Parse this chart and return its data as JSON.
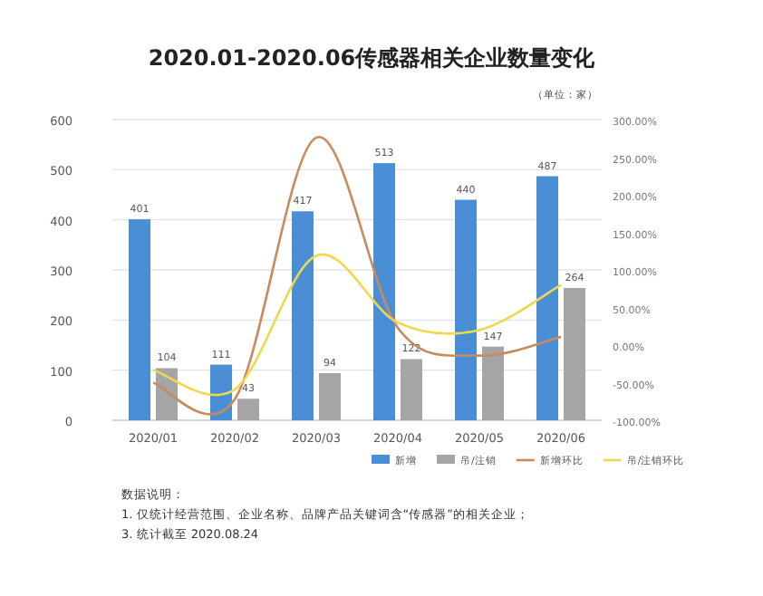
{
  "chart_data": {
    "type": "bar",
    "title": "2020.01-2020.06传感器相关企业数量变化",
    "categories": [
      "2020/01",
      "2020/02",
      "2020/03",
      "2020/04",
      "2020/05",
      "2020/06"
    ],
    "series": [
      {
        "name": "新增",
        "color": "#4a8fd6",
        "values": [
          401,
          111,
          417,
          513,
          440,
          487
        ],
        "value_labels": [
          "401",
          "111",
          "417",
          "513",
          "440",
          "487"
        ]
      },
      {
        "name": "吊/注销",
        "color": "#a5a5a5",
        "values": [
          104,
          43,
          94,
          122,
          147,
          264
        ],
        "value_labels": [
          "104",
          "43",
          "94",
          "122",
          "147",
          "264"
        ]
      },
      {
        "name": "新增环比",
        "type": "line",
        "axis": "y2",
        "color": "#c98a5e",
        "values": [
          -50,
          -72,
          276,
          23,
          -14,
          11
        ]
      },
      {
        "name": "吊/注销环比",
        "type": "line",
        "axis": "y2",
        "color": "#efd84e",
        "values": [
          -33,
          -59,
          119,
          30,
          20,
          80
        ]
      }
    ],
    "ylim": [
      0,
      600
    ],
    "yticks": [
      0,
      100,
      200,
      300,
      400,
      500,
      600
    ],
    "y2lim": [
      -100,
      300
    ],
    "y2ticks": [
      {
        "value": -100,
        "label": "-100.00%"
      },
      {
        "value": -50,
        "label": "-50.00%"
      },
      {
        "value": 0,
        "label": "0.00%"
      },
      {
        "value": 50,
        "label": "50.00%"
      },
      {
        "value": 100,
        "label": "100.00%"
      },
      {
        "value": 150,
        "label": "150.00%"
      },
      {
        "value": 200,
        "label": "200.00%"
      },
      {
        "value": 250,
        "label": "250.00%"
      },
      {
        "value": 300,
        "label": "300.00%"
      }
    ],
    "grid": "y",
    "legend": "bottom",
    "annotations": [
      "（单位：家）",
      "数据说明：",
      "1. 仅统计经营范围、企业名称、品牌产品关键词含“传感器”的相关企业；",
      "3. 统计截至 2020.08.24"
    ]
  }
}
